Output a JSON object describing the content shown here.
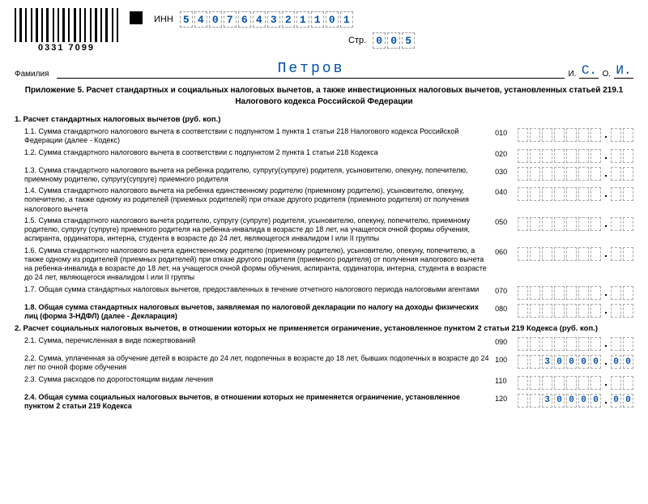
{
  "header": {
    "barcode_label": "0331 7099",
    "inn_label": "ИНН",
    "inn": [
      "5",
      "4",
      "0",
      "7",
      "6",
      "4",
      "3",
      "2",
      "1",
      "1",
      "0",
      "1"
    ],
    "page_label": "Стр.",
    "page": [
      "0",
      "0",
      "5"
    ],
    "surname_label": "Фамилия",
    "surname": "Петров",
    "i_label": "И.",
    "i_val": "С.",
    "o_label": "О.",
    "o_val": "И."
  },
  "title": "Приложение 5. Расчет стандартных и социальных налоговых вычетов, а также инвестиционных налоговых вычетов, установленных статьей 219.1 Налогового кодекса Российской Федерации",
  "section1": {
    "heading": "1. Расчет стандартных налоговых вычетов (руб. коп.)",
    "rows": [
      {
        "n": "1.1.",
        "t": "Сумма стандартного налогового вычета в соответствии с подпунктом 1 пункта 1 статьи 218 Налогового кодекса Российской Федерации (далее - Кодекс)",
        "code": "010",
        "int": [
          "",
          "",
          "",
          "",
          "",
          "",
          ""
        ],
        "dec": [
          "",
          ""
        ]
      },
      {
        "n": "1.2.",
        "t": "Сумма стандартного налогового вычета в соответствии с подпунктом 2 пункта 1 статьи 218 Кодекса",
        "code": "020",
        "int": [
          "",
          "",
          "",
          "",
          "",
          "",
          ""
        ],
        "dec": [
          "",
          ""
        ]
      },
      {
        "n": "1.3.",
        "t": "Сумма стандартного налогового вычета на ребенка родителю, супругу(супруге) родителя, усыновителю, опекуну, попечителю, приемному родителю, супругу(супруге) приемного родителя",
        "code": "030",
        "int": [
          "",
          "",
          "",
          "",
          "",
          "",
          ""
        ],
        "dec": [
          "",
          ""
        ]
      },
      {
        "n": "1.4.",
        "t": "Сумма стандартного налогового вычета на ребенка единственному родителю (приемному родителю), усыновителю, опекуну, попечителю, а также одному из родителей (приемных родителей) при отказе другого родителя (приемного родителя) от получения налогового вычета",
        "code": "040",
        "int": [
          "",
          "",
          "",
          "",
          "",
          "",
          ""
        ],
        "dec": [
          "",
          ""
        ]
      },
      {
        "n": "1.5.",
        "t": "Сумма стандартного налогового вычета родителю, супругу (супруге) родителя, усыновителю, опекуну, попечителю, приемному родителю, супругу (супруге) приемного родителя на ребенка-инвалида в возрасте до 18 лет, на учащегося очной формы обучения, аспиранта, ординатора, интерна, студента в возрасте до 24 лет, являющегося инвалидом I или II группы",
        "code": "050",
        "int": [
          "",
          "",
          "",
          "",
          "",
          "",
          ""
        ],
        "dec": [
          "",
          ""
        ]
      },
      {
        "n": "1.6.",
        "t": "Сумма стандартного налогового вычета единственному родителю (приемному родителю), усыновителю, опекуну, попечителю, а также одному из родителей (приемных родителей) при отказе другого родителя (приемного родителя) от получения налогового вычета на ребенка-инвалида в возрасте до 18 лет, на учащегося очной формы обучения, аспиранта, ординатора, интерна, студента в возрасте до 24 лет, являющегося инвалидом I или II группы",
        "code": "060",
        "int": [
          "",
          "",
          "",
          "",
          "",
          "",
          ""
        ],
        "dec": [
          "",
          ""
        ]
      },
      {
        "n": "1.7.",
        "t": "Общая сумма стандартных налоговых вычетов, предоставленных в течение отчетного налогового периода налоговыми агентами",
        "code": "070",
        "int": [
          "",
          "",
          "",
          "",
          "",
          "",
          ""
        ],
        "dec": [
          "",
          ""
        ]
      },
      {
        "n": "1.8.",
        "t": "Общая сумма стандартных налоговых вычетов, заявляемая по налоговой декларации по налогу на доходы физических лиц (форма 3-НДФЛ) (далее - Декларация)",
        "code": "080",
        "int": [
          "",
          "",
          "",
          "",
          "",
          "",
          ""
        ],
        "dec": [
          "",
          ""
        ],
        "bold": true
      }
    ]
  },
  "section2": {
    "heading": "2. Расчет социальных налоговых вычетов, в отношении которых не применяется ограничение, установленное пунктом 2 статьи 219 Кодекса (руб. коп.)",
    "rows": [
      {
        "n": "2.1.",
        "t": "Сумма, перечисленная в виде пожертвований",
        "code": "090",
        "int": [
          "",
          "",
          "",
          "",
          "",
          "",
          ""
        ],
        "dec": [
          "",
          ""
        ]
      },
      {
        "n": "2.2.",
        "t": "Сумма, уплаченная за обучение детей в возрасте до 24 лет, подопечных в возрасте до 18 лет, бывших подопечных в возрасте до 24 лет по очной форме обучения",
        "code": "100",
        "int": [
          "",
          "",
          "3",
          "0",
          "0",
          "0",
          "0"
        ],
        "dec": [
          "0",
          "0"
        ]
      },
      {
        "n": "2.3.",
        "t": "Сумма расходов по дорогостоящим видам лечения",
        "code": "110",
        "int": [
          "",
          "",
          "",
          "",
          "",
          "",
          ""
        ],
        "dec": [
          "",
          ""
        ]
      },
      {
        "n": "2.4.",
        "t": "Общая сумма социальных налоговых вычетов, в отношении которых не применяется ограничение, установленное пунктом 2 статьи 219 Кодекса",
        "code": "120",
        "int": [
          "",
          "",
          "3",
          "0",
          "0",
          "0",
          "0"
        ],
        "dec": [
          "0",
          "0"
        ],
        "bold": true
      }
    ]
  },
  "colors": {
    "value": "#0050aa",
    "cell_border": "#aaaaaa"
  }
}
